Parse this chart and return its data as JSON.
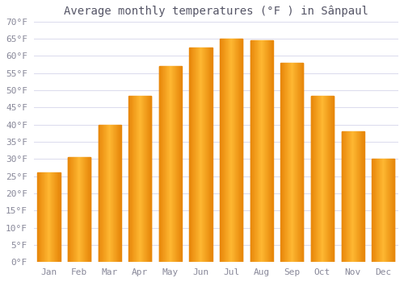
{
  "title": "Average monthly temperatures (°F ) in Sânpaul",
  "months": [
    "Jan",
    "Feb",
    "Mar",
    "Apr",
    "May",
    "Jun",
    "Jul",
    "Aug",
    "Sep",
    "Oct",
    "Nov",
    "Dec"
  ],
  "values": [
    26,
    30.5,
    40,
    48.5,
    57,
    62.5,
    65,
    64.5,
    58,
    48.5,
    38,
    30
  ],
  "bar_color_left": "#E8870A",
  "bar_color_mid": "#FFB833",
  "bar_color_right": "#E8870A",
  "background_color": "#FFFFFF",
  "grid_color": "#DDDDEE",
  "ylim": [
    0,
    70
  ],
  "yticks": [
    0,
    5,
    10,
    15,
    20,
    25,
    30,
    35,
    40,
    45,
    50,
    55,
    60,
    65,
    70
  ],
  "title_fontsize": 10,
  "tick_fontsize": 8,
  "axis_label_color": "#888899"
}
